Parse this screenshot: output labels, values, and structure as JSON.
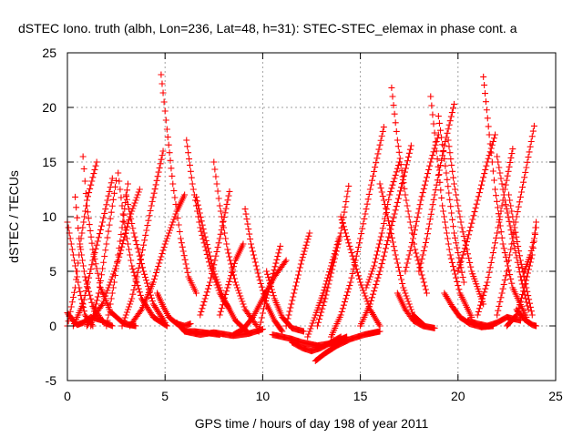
{
  "chart_data": {
    "type": "scatter",
    "title": "dSTEC Iono. truth (albh, Lon=236, Lat=48, h=31): STEC-STEC_elemax in phase cont. a",
    "xlabel": "GPS time / hours of day 198 of year 2011",
    "ylabel": "dSTEC  / TECUs",
    "xlim": [
      0,
      25
    ],
    "ylim": [
      -5,
      25
    ],
    "xticks": [
      "0",
      "5",
      "10",
      "15",
      "20",
      "25"
    ],
    "yticks": [
      "-5",
      "0",
      "5",
      "10",
      "15",
      "20",
      "25"
    ],
    "grid": true,
    "marker": "plus",
    "color": "#ff0000",
    "series": [
      {
        "x": [
          0.0,
          0.3,
          0.6,
          0.9,
          1.3
        ],
        "y": [
          9.5,
          6.5,
          3.5,
          1.0,
          0.0
        ]
      },
      {
        "x": [
          0.0,
          0.25,
          0.5,
          0.8,
          1.2,
          1.8
        ],
        "y": [
          1.2,
          0.6,
          0.1,
          0.3,
          0.8,
          0.5
        ]
      },
      {
        "x": [
          0.4,
          0.6,
          0.9,
          1.3,
          1.8,
          2.3
        ],
        "y": [
          11.8,
          8.0,
          4.5,
          1.8,
          0.4,
          0.0
        ]
      },
      {
        "x": [
          0.0,
          0.4,
          0.7,
          1.0,
          1.5
        ],
        "y": [
          0.0,
          3.5,
          8.0,
          11.5,
          15.0
        ]
      },
      {
        "x": [
          0.8,
          1.0,
          1.3,
          1.7,
          2.2,
          2.9,
          3.5
        ],
        "y": [
          15.5,
          11.0,
          7.0,
          3.5,
          1.3,
          0.2,
          0.0
        ]
      },
      {
        "x": [
          0.3,
          0.8,
          1.3,
          1.8,
          2.3
        ],
        "y": [
          0.0,
          2.0,
          6.0,
          9.5,
          13.5
        ]
      },
      {
        "x": [
          1.2,
          1.6,
          2.0,
          2.5
        ],
        "y": [
          0.0,
          3.0,
          7.5,
          13.3
        ]
      },
      {
        "x": [
          2.6,
          2.9,
          3.3,
          3.8,
          4.4,
          5.1
        ],
        "y": [
          14.0,
          9.5,
          5.5,
          2.5,
          0.8,
          0.0
        ]
      },
      {
        "x": [
          2.0,
          2.4,
          2.8,
          3.1
        ],
        "y": [
          0.0,
          4.0,
          9.0,
          13.0
        ]
      },
      {
        "x": [
          3.0,
          3.4,
          3.9,
          4.4,
          5.0
        ],
        "y": [
          12.0,
          8.5,
          5.0,
          2.0,
          0.3
        ]
      },
      {
        "x": [
          1.0,
          1.8,
          2.6,
          3.2,
          3.7
        ],
        "y": [
          0.0,
          2.0,
          6.0,
          10.0,
          12.5
        ]
      },
      {
        "x": [
          2.8,
          3.3,
          3.8,
          4.3,
          4.9
        ],
        "y": [
          0.0,
          2.5,
          6.5,
          11.0,
          16.0
        ]
      },
      {
        "x": [
          4.6,
          4.9,
          5.2,
          5.6,
          6.0,
          6.3
        ],
        "y": [
          3.0,
          1.8,
          0.8,
          0.2,
          0.0,
          0.2
        ]
      },
      {
        "x": [
          4.8,
          5.1,
          5.4,
          5.8,
          6.2,
          6.6
        ],
        "y": [
          23.0,
          18.0,
          13.0,
          8.0,
          4.5,
          3.0
        ]
      },
      {
        "x": [
          3.2,
          3.8,
          4.4,
          5.0,
          5.6,
          6.0
        ],
        "y": [
          0.0,
          1.5,
          4.0,
          7.5,
          10.5,
          12.0
        ]
      },
      {
        "x": [
          6.1,
          6.4,
          6.8,
          7.3,
          7.8,
          8.3
        ],
        "y": [
          17.0,
          13.0,
          9.0,
          5.5,
          3.0,
          1.5
        ]
      },
      {
        "x": [
          6.6,
          7.0,
          7.5,
          8.0,
          8.6,
          9.2
        ],
        "y": [
          11.8,
          8.5,
          5.0,
          2.5,
          0.5,
          -0.5
        ]
      },
      {
        "x": [
          6.0,
          6.8,
          7.5,
          8.5,
          9.3,
          10.0
        ],
        "y": [
          -0.5,
          -0.8,
          -0.6,
          -0.9,
          -0.7,
          -0.3
        ]
      },
      {
        "x": [
          5.6,
          6.0,
          6.5,
          7.0,
          7.8
        ],
        "y": [
          0.3,
          -0.5,
          -0.5,
          -0.6,
          -0.8
        ]
      },
      {
        "x": [
          7.5,
          7.8,
          8.2,
          8.6,
          9.1,
          9.7
        ],
        "y": [
          15.0,
          11.0,
          7.0,
          4.0,
          1.5,
          0.0
        ]
      },
      {
        "x": [
          6.8,
          7.3,
          7.8,
          8.3
        ],
        "y": [
          1.0,
          4.0,
          8.0,
          12.3
        ]
      },
      {
        "x": [
          7.8,
          8.2,
          8.6,
          9.0
        ],
        "y": [
          1.0,
          3.5,
          6.0,
          7.5
        ]
      },
      {
        "x": [
          9.1,
          9.4,
          9.8,
          10.2,
          10.6,
          11.0
        ],
        "y": [
          10.7,
          7.5,
          4.5,
          2.0,
          0.5,
          -0.5
        ]
      },
      {
        "x": [
          8.5,
          9.0,
          9.5,
          10.0,
          10.6,
          11.2
        ],
        "y": [
          -0.8,
          -0.3,
          0.8,
          2.5,
          4.5,
          6.0
        ]
      },
      {
        "x": [
          9.8,
          10.1,
          10.5,
          10.9
        ],
        "y": [
          -0.5,
          2.0,
          4.5,
          7.3
        ]
      },
      {
        "x": [
          10.2,
          10.6,
          11.0,
          11.5,
          12.1
        ],
        "y": [
          5.0,
          2.5,
          0.8,
          -0.2,
          -0.5
        ]
      },
      {
        "x": [
          10.5,
          11.0,
          11.5,
          12.0,
          12.8,
          13.5,
          14.3
        ],
        "y": [
          -0.8,
          -1.0,
          -1.2,
          -1.5,
          -1.8,
          -1.6,
          -1.0
        ]
      },
      {
        "x": [
          11.2,
          11.6,
          12.0,
          12.4
        ],
        "y": [
          0.0,
          3.0,
          6.0,
          8.5
        ]
      },
      {
        "x": [
          11.5,
          12.0,
          12.5,
          13.0,
          13.5,
          14.0
        ],
        "y": [
          -1.5,
          -2.0,
          -2.3,
          -2.0,
          -1.5,
          -1.0
        ]
      },
      {
        "x": [
          12.7,
          13.2,
          13.8,
          14.5,
          15.2,
          16.0
        ],
        "y": [
          -3.2,
          -2.5,
          -1.8,
          -1.2,
          -0.8,
          -0.5
        ]
      },
      {
        "x": [
          12.3,
          12.7,
          13.1,
          13.5,
          13.9
        ],
        "y": [
          -1.0,
          1.0,
          3.0,
          5.5,
          8.0
        ]
      },
      {
        "x": [
          12.8,
          13.2,
          13.6,
          14.0,
          14.4
        ],
        "y": [
          0.0,
          2.5,
          5.5,
          8.5,
          12.8
        ]
      },
      {
        "x": [
          13.5,
          14.0,
          14.5,
          15.0,
          15.5,
          16.2
        ],
        "y": [
          -1.0,
          1.0,
          4.0,
          8.0,
          12.5,
          18.2
        ]
      },
      {
        "x": [
          14.0,
          14.5,
          15.0,
          15.5,
          16.0
        ],
        "y": [
          10.0,
          7.0,
          4.0,
          1.5,
          0.0
        ]
      },
      {
        "x": [
          15.0,
          15.5,
          16.0,
          16.5,
          17.0,
          17.6
        ],
        "y": [
          0.0,
          2.0,
          5.0,
          8.5,
          12.0,
          16.5
        ]
      },
      {
        "x": [
          15.3,
          15.7,
          16.1,
          16.5,
          17.0
        ],
        "y": [
          3.5,
          5.5,
          8.5,
          12.0,
          15.0
        ]
      },
      {
        "x": [
          16.0,
          16.4,
          16.8,
          17.2,
          17.7,
          18.3
        ],
        "y": [
          13.0,
          10.0,
          6.5,
          3.5,
          1.0,
          0.0
        ]
      },
      {
        "x": [
          16.6,
          16.9,
          17.3,
          17.8,
          18.4
        ],
        "y": [
          21.8,
          17.0,
          12.0,
          7.0,
          3.0
        ]
      },
      {
        "x": [
          16.9,
          17.3,
          17.7,
          18.2,
          18.8
        ],
        "y": [
          3.0,
          1.5,
          0.5,
          0.0,
          -0.2
        ]
      },
      {
        "x": [
          17.3,
          17.7,
          18.1,
          18.6,
          19.0
        ],
        "y": [
          5.0,
          8.0,
          11.5,
          15.0,
          17.5
        ]
      },
      {
        "x": [
          18.0,
          18.4,
          18.8,
          19.3,
          19.8
        ],
        "y": [
          5.0,
          8.0,
          12.0,
          16.5,
          20.3
        ]
      },
      {
        "x": [
          18.6,
          18.9,
          19.2,
          19.6,
          20.1,
          20.7
        ],
        "y": [
          21.0,
          16.0,
          11.0,
          6.5,
          3.0,
          0.8
        ]
      },
      {
        "x": [
          19.0,
          19.4,
          19.8,
          20.3
        ],
        "y": [
          19.2,
          14.0,
          8.5,
          4.0
        ]
      },
      {
        "x": [
          19.3,
          19.7,
          20.1,
          20.6,
          21.2,
          21.8
        ],
        "y": [
          3.0,
          1.8,
          0.8,
          0.2,
          -0.1,
          0.0
        ]
      },
      {
        "x": [
          19.5,
          19.8,
          20.2,
          20.7,
          21.3
        ],
        "y": [
          17.0,
          13.0,
          9.0,
          5.0,
          2.0
        ]
      },
      {
        "x": [
          20.5,
          21.0,
          21.5,
          22.0,
          22.5,
          23.2
        ],
        "y": [
          0.5,
          0.2,
          0.0,
          0.3,
          0.8,
          0.5
        ]
      },
      {
        "x": [
          21.3,
          21.6,
          21.9,
          22.3,
          22.8,
          23.5
        ],
        "y": [
          22.8,
          17.5,
          12.5,
          7.5,
          3.5,
          0.8
        ]
      },
      {
        "x": [
          20.0,
          20.5,
          21.0,
          21.5,
          21.9
        ],
        "y": [
          5.0,
          8.0,
          11.5,
          15.0,
          17.5
        ]
      },
      {
        "x": [
          22.0,
          22.4,
          22.8,
          23.2,
          23.6
        ],
        "y": [
          15.5,
          11.5,
          8.0,
          4.5,
          1.5
        ]
      },
      {
        "x": [
          21.0,
          21.5,
          22.0,
          22.4,
          22.8
        ],
        "y": [
          1.0,
          4.0,
          8.5,
          12.5,
          16.2
        ]
      },
      {
        "x": [
          22.0,
          22.5,
          23.0,
          23.5,
          23.9
        ],
        "y": [
          1.0,
          5.0,
          10.0,
          14.5,
          18.3
        ]
      },
      {
        "x": [
          22.6,
          22.9,
          23.2,
          23.5,
          23.8
        ],
        "y": [
          12.0,
          9.0,
          6.0,
          3.5,
          1.0
        ]
      },
      {
        "x": [
          22.5,
          23.0,
          23.4,
          23.8,
          24.0
        ],
        "y": [
          0.0,
          1.0,
          3.5,
          6.5,
          9.0
        ]
      },
      {
        "x": [
          23.0,
          23.4,
          23.8,
          24.0
        ],
        "y": [
          1.5,
          0.6,
          0.1,
          0.0
        ]
      },
      {
        "x": [
          23.4,
          23.7,
          23.9,
          24.0
        ],
        "y": [
          5.0,
          6.5,
          8.0,
          9.5
        ]
      }
    ]
  }
}
